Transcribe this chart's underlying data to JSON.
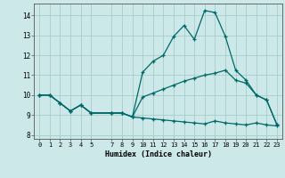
{
  "title": "",
  "xlabel": "Humidex (Indice chaleur)",
  "xlim": [
    -0.5,
    23.5
  ],
  "ylim": [
    7.8,
    14.6
  ],
  "yticks": [
    8,
    9,
    10,
    11,
    12,
    13,
    14
  ],
  "xticks": [
    0,
    1,
    2,
    3,
    4,
    5,
    7,
    8,
    9,
    10,
    11,
    12,
    13,
    14,
    15,
    16,
    17,
    18,
    19,
    20,
    21,
    22,
    23
  ],
  "bg_color": "#cce8e8",
  "line_color": "#006868",
  "grid_color": "#a8cccc",
  "series1_x": [
    0,
    1,
    2,
    3,
    4,
    5,
    7,
    8,
    9,
    10,
    11,
    12,
    13,
    14,
    15,
    16,
    17,
    18,
    19,
    20,
    21,
    22,
    23
  ],
  "series1_y": [
    10.0,
    10.0,
    9.6,
    9.2,
    9.5,
    9.1,
    9.1,
    9.1,
    8.9,
    11.15,
    11.7,
    12.0,
    12.95,
    13.5,
    12.8,
    14.25,
    14.15,
    12.95,
    11.25,
    10.75,
    10.0,
    9.75,
    8.5
  ],
  "series2_x": [
    0,
    1,
    2,
    3,
    4,
    5,
    7,
    8,
    9,
    10,
    11,
    12,
    13,
    14,
    15,
    16,
    17,
    18,
    19,
    20,
    21,
    22,
    23
  ],
  "series2_y": [
    10.0,
    10.0,
    9.6,
    9.2,
    9.5,
    9.1,
    9.1,
    9.1,
    8.9,
    9.9,
    10.1,
    10.3,
    10.5,
    10.7,
    10.85,
    11.0,
    11.1,
    11.25,
    10.75,
    10.6,
    10.0,
    9.75,
    8.5
  ],
  "series3_x": [
    0,
    1,
    2,
    3,
    4,
    5,
    7,
    8,
    9,
    10,
    11,
    12,
    13,
    14,
    15,
    16,
    17,
    18,
    19,
    20,
    21,
    22,
    23
  ],
  "series3_y": [
    10.0,
    10.0,
    9.6,
    9.2,
    9.5,
    9.1,
    9.1,
    9.1,
    8.9,
    8.85,
    8.8,
    8.75,
    8.7,
    8.65,
    8.6,
    8.55,
    8.7,
    8.6,
    8.55,
    8.5,
    8.6,
    8.5,
    8.45
  ]
}
